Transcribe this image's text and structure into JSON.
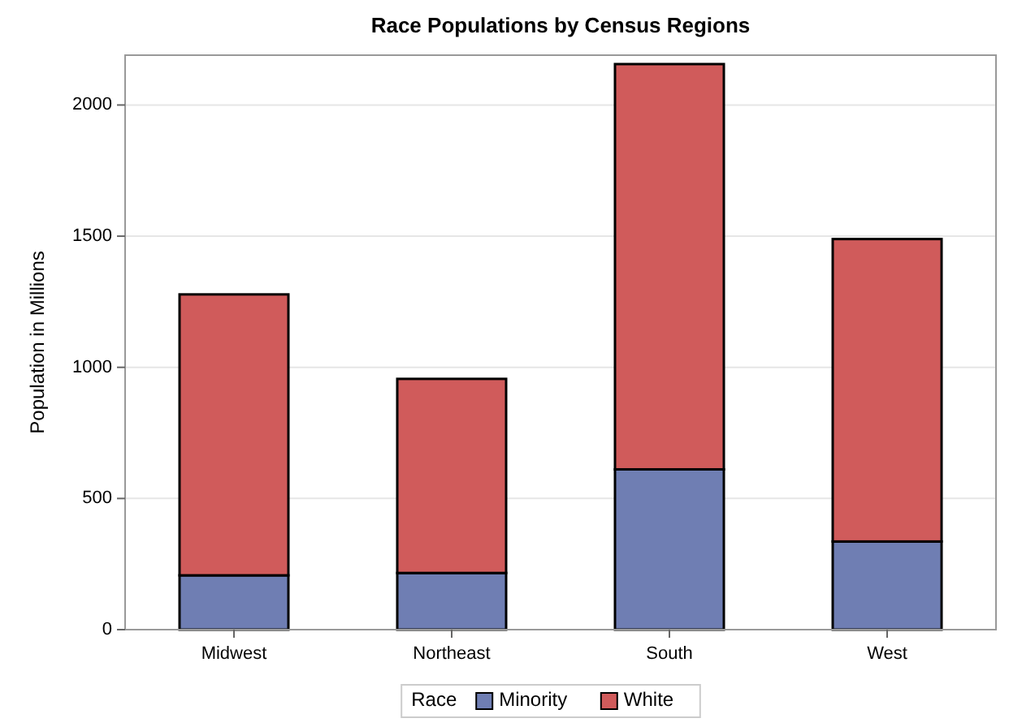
{
  "chart_data": {
    "type": "bar",
    "stacked": true,
    "title": "Race Populations by Census Regions",
    "ylabel": "Population in Millions",
    "categories": [
      "Midwest",
      "Northeast",
      "South",
      "West"
    ],
    "series": [
      {
        "name": "Minority",
        "color": "#6f7eb3",
        "values": [
          207,
          216,
          611,
          336
        ]
      },
      {
        "name": "White",
        "color": "#d05b5b",
        "values": [
          1071,
          740,
          1545,
          1153
        ]
      }
    ],
    "legend_title": "Race",
    "legend": "bottom",
    "ylim": [
      0,
      2190
    ],
    "yticks": [
      0,
      500,
      1000,
      1500,
      2000
    ],
    "grid": "y"
  }
}
